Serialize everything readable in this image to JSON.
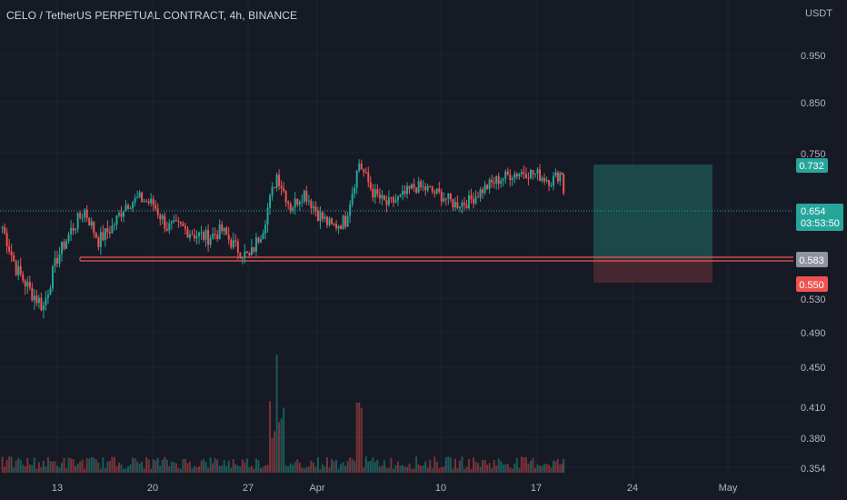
{
  "header": {
    "title": "CELO / TetherUS PERPETUAL CONTRACT, 4h, BINANCE",
    "currency": "USDT"
  },
  "price_axis": {
    "ticks": [
      "0.950",
      "0.850",
      "0.750",
      "0.530",
      "0.490",
      "0.450",
      "0.410",
      "0.380",
      "0.354"
    ]
  },
  "time_axis": {
    "ticks": [
      "13",
      "20",
      "27",
      "Apr",
      "10",
      "17",
      "24",
      "May"
    ]
  },
  "badges": {
    "target": "0.732",
    "last_price": "0.654",
    "countdown": "03:53:50",
    "entry": "0.583",
    "stop": "0.550"
  },
  "colors": {
    "background": "#161a25",
    "up": "#26a69a",
    "down": "#ef5350",
    "target_zone": "#1e5a55",
    "stop_zone": "#4f2a33",
    "entry_badge": "#8e939e"
  },
  "chart_data": {
    "type": "candlestick",
    "title": "CELO / TetherUS PERPETUAL CONTRACT, 4h, BINANCE",
    "ylabel": "USDT",
    "x_ticks": [
      "13",
      "20",
      "27",
      "Apr",
      "10",
      "17",
      "24",
      "May"
    ],
    "y_ticks": [
      0.95,
      0.85,
      0.75,
      0.53,
      0.49,
      0.45,
      0.41,
      0.38,
      0.354
    ],
    "last_price": 0.654,
    "position": {
      "target": 0.732,
      "entry": 0.583,
      "stop": 0.55
    },
    "volume": {
      "max_spike_date": "Mar 29"
    },
    "anchors": [
      [
        "Mar 9",
        0.63
      ],
      [
        "Mar 10",
        0.57
      ],
      [
        "Mar 11",
        0.54
      ],
      [
        "Mar 12",
        0.52
      ],
      [
        "Mar 13",
        0.585
      ],
      [
        "Mar 14",
        0.625
      ],
      [
        "Mar 15",
        0.655
      ],
      [
        "Mar 16",
        0.61
      ],
      [
        "Mar 17",
        0.63
      ],
      [
        "Mar 18",
        0.665
      ],
      [
        "Mar 19",
        0.675
      ],
      [
        "Mar 20",
        0.665
      ],
      [
        "Mar 21",
        0.63
      ],
      [
        "Mar 22",
        0.63
      ],
      [
        "Mar 23",
        0.62
      ],
      [
        "Mar 24",
        0.615
      ],
      [
        "Mar 25",
        0.625
      ],
      [
        "Mar 26",
        0.6
      ],
      [
        "Mar 27",
        0.585
      ],
      [
        "Mar 28",
        0.63
      ],
      [
        "Mar 29",
        0.715
      ],
      [
        "Mar 30",
        0.66
      ],
      [
        "Mar 31",
        0.685
      ],
      [
        "Apr 1",
        0.65
      ],
      [
        "Apr 2",
        0.63
      ],
      [
        "Apr 3",
        0.64
      ],
      [
        "Apr 4",
        0.735
      ],
      [
        "Apr 5",
        0.685
      ],
      [
        "Apr 6",
        0.665
      ],
      [
        "Apr 7",
        0.675
      ],
      [
        "Apr 8",
        0.695
      ],
      [
        "Apr 9",
        0.69
      ],
      [
        "Apr 10",
        0.68
      ],
      [
        "Apr 11",
        0.665
      ],
      [
        "Apr 12",
        0.67
      ],
      [
        "Apr 13",
        0.69
      ],
      [
        "Apr 14",
        0.705
      ],
      [
        "Apr 15",
        0.715
      ],
      [
        "Apr 16",
        0.72
      ],
      [
        "Apr 17",
        0.715
      ],
      [
        "Apr 18",
        0.705
      ],
      [
        "Apr 18.8",
        0.72
      ],
      [
        "Apr 19",
        0.654
      ]
    ]
  }
}
